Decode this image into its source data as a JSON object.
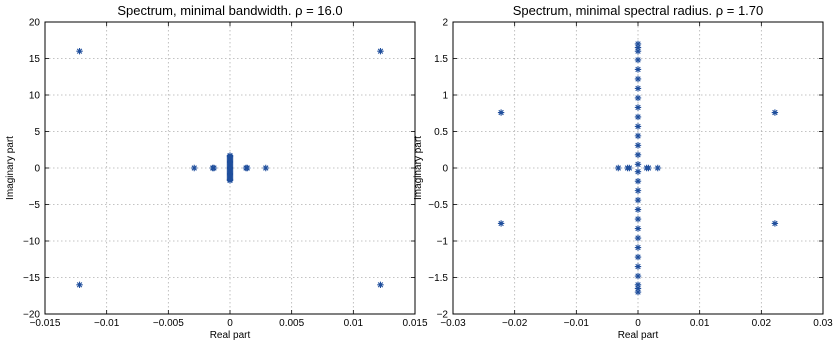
{
  "chart_data": [
    {
      "type": "scatter",
      "title": "Spectrum, minimal bandwidth. ρ = 16.0",
      "xlabel": "Real part",
      "ylabel": "Imaginary part",
      "xlim": [
        -0.015,
        0.015
      ],
      "ylim": [
        -20,
        20
      ],
      "xticks": [
        -0.015,
        -0.01,
        -0.005,
        0,
        0.005,
        0.01,
        0.015
      ],
      "xtick_labels": [
        "−0.015",
        "−0.01",
        "−0.005",
        "0",
        "0.005",
        "0.01",
        "0.015"
      ],
      "yticks": [
        -20,
        -15,
        -10,
        -5,
        0,
        5,
        10,
        15,
        20
      ],
      "ytick_labels": [
        "−20",
        "−15",
        "−10",
        "−5",
        "0",
        "5",
        "10",
        "15",
        "20"
      ],
      "grid": true,
      "marker": "*",
      "color": "#1f4e9c",
      "points": [
        {
          "x": -0.0122,
          "y": 16.0
        },
        {
          "x": 0.0122,
          "y": 16.0
        },
        {
          "x": -0.0122,
          "y": -16.0
        },
        {
          "x": 0.0122,
          "y": -16.0
        },
        {
          "x": -0.0029,
          "y": 0
        },
        {
          "x": -0.0014,
          "y": 0
        },
        {
          "x": -0.0013,
          "y": 0
        },
        {
          "x": 0.0013,
          "y": 0
        },
        {
          "x": 0.0014,
          "y": 0
        },
        {
          "x": 0.0029,
          "y": 0
        },
        {
          "x": 0,
          "y": 1.7
        },
        {
          "x": 0,
          "y": 1.6
        },
        {
          "x": 0,
          "y": 1.5
        },
        {
          "x": 0,
          "y": 1.35
        },
        {
          "x": 0,
          "y": 1.2
        },
        {
          "x": 0,
          "y": 1.05
        },
        {
          "x": 0,
          "y": 0.9
        },
        {
          "x": 0,
          "y": 0.75
        },
        {
          "x": 0,
          "y": 0.6
        },
        {
          "x": 0,
          "y": 0.45
        },
        {
          "x": 0,
          "y": 0.3
        },
        {
          "x": 0,
          "y": 0.15
        },
        {
          "x": 0,
          "y": 0
        },
        {
          "x": 0,
          "y": -0.15
        },
        {
          "x": 0,
          "y": -0.3
        },
        {
          "x": 0,
          "y": -0.45
        },
        {
          "x": 0,
          "y": -0.6
        },
        {
          "x": 0,
          "y": -0.75
        },
        {
          "x": 0,
          "y": -0.9
        },
        {
          "x": 0,
          "y": -1.05
        },
        {
          "x": 0,
          "y": -1.2
        },
        {
          "x": 0,
          "y": -1.35
        },
        {
          "x": 0,
          "y": -1.5
        },
        {
          "x": 0,
          "y": -1.6
        },
        {
          "x": 0,
          "y": -1.7
        }
      ]
    },
    {
      "type": "scatter",
      "title": "Spectrum, minimal spectral radius. ρ = 1.70",
      "xlabel": "Real part",
      "ylabel": "Imaginary part",
      "xlim": [
        -0.03,
        0.03
      ],
      "ylim": [
        -2,
        2
      ],
      "xticks": [
        -0.03,
        -0.02,
        -0.01,
        0,
        0.01,
        0.02,
        0.03
      ],
      "xtick_labels": [
        "−0.03",
        "−0.02",
        "−0.01",
        "0",
        "0.01",
        "0.02",
        "0.03"
      ],
      "yticks": [
        -2,
        -1.5,
        -1,
        -0.5,
        0,
        0.5,
        1,
        1.5,
        2
      ],
      "ytick_labels": [
        "−2",
        "−1.5",
        "−1",
        "−0.5",
        "0",
        "0.5",
        "1",
        "1.5",
        "2"
      ],
      "grid": true,
      "marker": "*",
      "color": "#1f4e9c",
      "points": [
        {
          "x": -0.0222,
          "y": 0.76
        },
        {
          "x": 0.0222,
          "y": 0.76
        },
        {
          "x": -0.0222,
          "y": -0.76
        },
        {
          "x": 0.0222,
          "y": -0.76
        },
        {
          "x": -0.0032,
          "y": 0
        },
        {
          "x": -0.0017,
          "y": 0
        },
        {
          "x": -0.0014,
          "y": 0
        },
        {
          "x": 0.0014,
          "y": 0
        },
        {
          "x": 0.0017,
          "y": 0
        },
        {
          "x": 0.0032,
          "y": 0
        },
        {
          "x": 0,
          "y": 1.7
        },
        {
          "x": 0,
          "y": 1.65
        },
        {
          "x": 0,
          "y": 1.6
        },
        {
          "x": 0,
          "y": 1.48
        },
        {
          "x": 0,
          "y": 1.35
        },
        {
          "x": 0,
          "y": 1.22
        },
        {
          "x": 0,
          "y": 1.09
        },
        {
          "x": 0,
          "y": 0.96
        },
        {
          "x": 0,
          "y": 0.83
        },
        {
          "x": 0,
          "y": 0.7
        },
        {
          "x": 0,
          "y": 0.57
        },
        {
          "x": 0,
          "y": 0.44
        },
        {
          "x": 0,
          "y": 0.31
        },
        {
          "x": 0,
          "y": 0.18
        },
        {
          "x": 0,
          "y": 0.05
        },
        {
          "x": 0,
          "y": -0.05
        },
        {
          "x": 0,
          "y": -0.18
        },
        {
          "x": 0,
          "y": -0.31
        },
        {
          "x": 0,
          "y": -0.44
        },
        {
          "x": 0,
          "y": -0.57
        },
        {
          "x": 0,
          "y": -0.7
        },
        {
          "x": 0,
          "y": -0.83
        },
        {
          "x": 0,
          "y": -0.96
        },
        {
          "x": 0,
          "y": -1.09
        },
        {
          "x": 0,
          "y": -1.22
        },
        {
          "x": 0,
          "y": -1.35
        },
        {
          "x": 0,
          "y": -1.48
        },
        {
          "x": 0,
          "y": -1.6
        },
        {
          "x": 0,
          "y": -1.65
        },
        {
          "x": 0,
          "y": -1.7
        }
      ]
    }
  ]
}
